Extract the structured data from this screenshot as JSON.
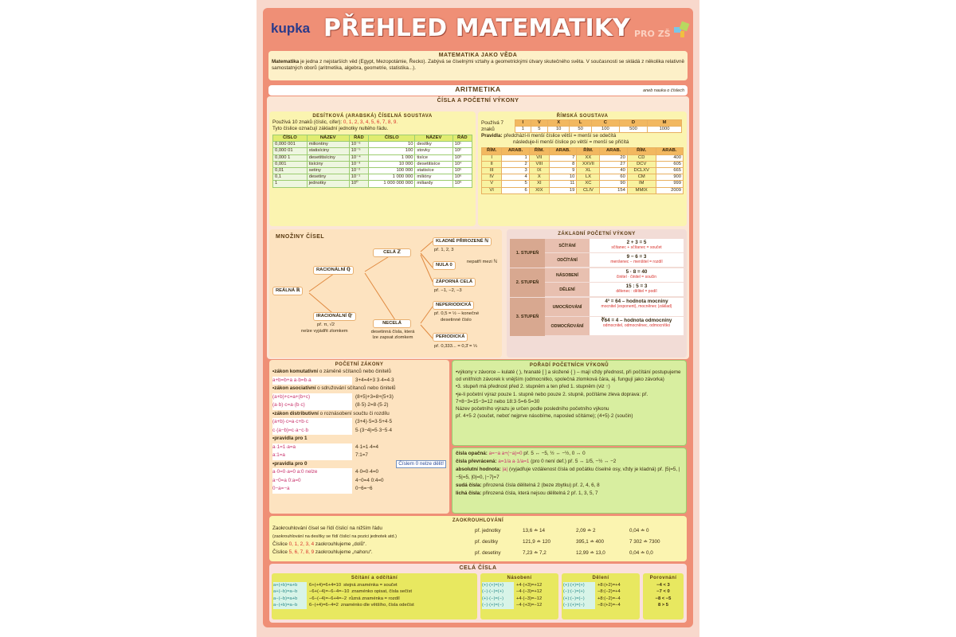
{
  "header": {
    "logo": "kupka",
    "title": "PŘEHLED MATEMATIKY",
    "subtitle": "PRO ZŠ",
    "icon": "puzzle-pieces-icon"
  },
  "intro": {
    "title": "MATEMATIKA JAKO VĚDA",
    "bold": "Matematika",
    "text": " je jedna z nejstarších věd (Egypt, Mezopotámie, Řecko). Zabývá se číselnými vztahy a geometrickými útvary skutečného světa. V současnosti se skládá z několika relativně samostatných oborů (aritmetika, algebra, geometrie, statistika...)."
  },
  "aritmetika": {
    "title": "ARITMETIKA",
    "note": "aneb nauka o číslech"
  },
  "cisla": {
    "title": "ČÍSLA A POČETNÍ VÝKONY"
  },
  "decimal": {
    "title": "DESÍTKOVÁ (ARABSKÁ) ČÍSELNÁ SOUSTAVA",
    "line1": "Používá 10 znaků (číslic, cifer): ",
    "digits": "0, 1, 2, 3, 4, 5, 6, 7, 8, 9.",
    "line2": "Tyto číslice označují základní jednotky nultého řádu.",
    "headers": [
      "ČÍSLO",
      "NÁZEV",
      "ŘÁD",
      "ČÍSLO",
      "NÁZEV",
      "ŘÁD"
    ],
    "rows": [
      [
        "0,000 001",
        "miliontiny",
        "10⁻⁶",
        "10",
        "desítky",
        "10¹"
      ],
      [
        "0,000 01",
        "statisíciny",
        "10⁻⁵",
        "100",
        "stovky",
        "10²"
      ],
      [
        "0,000 1",
        "desetitisíciny",
        "10⁻⁴",
        "1 000",
        "tisíce",
        "10³"
      ],
      [
        "0,001",
        "tisíciny",
        "10⁻³",
        "10 000",
        "desetitisíce",
        "10⁴"
      ],
      [
        "0,01",
        "setiny",
        "10⁻²",
        "100 000",
        "statisíce",
        "10⁵"
      ],
      [
        "0,1",
        "desetiny",
        "10⁻¹",
        "1 000 000",
        "milióny",
        "10⁶"
      ],
      [
        "1",
        "jednotky",
        "10⁰",
        "1 000 000 000",
        "miliardy",
        "10⁹"
      ]
    ]
  },
  "roman": {
    "title": "ŘÍMSKÁ SOUSTAVA",
    "uses": "Používá 7 znaků",
    "symbols": [
      "I",
      "V",
      "X",
      "L",
      "C",
      "D",
      "M"
    ],
    "values": [
      "1",
      "5",
      "10",
      "50",
      "100",
      "500",
      "1000"
    ],
    "rule_label": "Pravidla:",
    "rule1": "předchází-li menší číslice větší = menší se odečítá",
    "rule2": "následuje-li menší číslice po větší = menší se přičítá",
    "headers": [
      "ŘÍM.",
      "ARAB.",
      "ŘÍM.",
      "ARAB.",
      "ŘÍM.",
      "ARAB.",
      "ŘÍM.",
      "ARAB."
    ],
    "rows": [
      [
        "I",
        "1",
        "VII",
        "7",
        "XX",
        "20",
        "CD",
        "400"
      ],
      [
        "II",
        "2",
        "VIII",
        "8",
        "XXVII",
        "27",
        "DCV",
        "605"
      ],
      [
        "III",
        "3",
        "IX",
        "9",
        "XL",
        "40",
        "DCLXV",
        "665"
      ],
      [
        "IV",
        "4",
        "X",
        "10",
        "LX",
        "60",
        "CM",
        "900"
      ],
      [
        "V",
        "5",
        "XI",
        "11",
        "XC",
        "90",
        "IM",
        "999"
      ],
      [
        "VI",
        "6",
        "XIX",
        "19",
        "CLIV",
        "154",
        "MMIX",
        "2009"
      ]
    ]
  },
  "sets": {
    "title": "MNOŽINY ČÍSEL",
    "real": "REÁLNÁ ℝ",
    "rational": "RACIONÁLNÍ ℚ",
    "irrational": "IRACIONÁLNÍ ℚ'",
    "irr_ex": "př. π, √2",
    "irr_note": "nelze vyjádřit zlomkem",
    "integer": "CELÁ ℤ",
    "noninteger": "NECELÁ",
    "nonint_note": "desetinná čísla, která lze zapsat zlomkem",
    "natural": "KLADNÉ PŘIROZENÉ ℕ",
    "nat_ex": "př. 1, 2, 3",
    "zero": "NULA 0",
    "zero_note": "nepatří mezi ℕ",
    "negative": "ZÁPORNÁ CELÁ",
    "neg_ex": "př. −1, −2, −3",
    "nonperiodic": "NEPERIODICKÁ",
    "nonper_ex": "př. 0,5 = ½ – konečné",
    "nonper_note": "desetinné číslo",
    "periodic": "PERIODICKÁ",
    "per_ex": "př. 0,333... = 0,3̄ = ⅓"
  },
  "ops": {
    "title": "ZÁKLADNÍ POČETNÍ VÝKONY",
    "groups": [
      {
        "stage": "1. STUPEŇ",
        "rows": [
          {
            "name": "SČÍTÁNÍ",
            "ex": "2 + 3 = 5",
            "terms": "sčítanec + sčítanec = součet"
          },
          {
            "name": "ODČÍTÁNÍ",
            "ex": "9 − 6 = 3",
            "terms": "menšenec − menšitel = rozdíl"
          }
        ]
      },
      {
        "stage": "2. STUPEŇ",
        "rows": [
          {
            "name": "NÁSOBENÍ",
            "ex": "5 · 8 = 40",
            "terms": "činitel · činitel = součin"
          },
          {
            "name": "DĚLENÍ",
            "ex": "15 : 5 = 3",
            "terms": "dělenec : dělitel = podíl"
          }
        ]
      },
      {
        "stage": "3. STUPEŇ",
        "rows": [
          {
            "name": "UMOCŇOVÁNÍ",
            "ex": "4³ = 64 – hodnota mocniny",
            "terms": "mocnitel (exponent), mocněnec (základ)"
          },
          {
            "name": "ODMOCŇOVÁNÍ",
            "ex": "∛64 = 4 – hodnota odmocniny",
            "terms": "odmocnitel, odmocněnec, odmocnítko"
          }
        ]
      }
    ]
  },
  "laws": {
    "title": "POČETNÍ ZÁKONY",
    "lines": [
      {
        "b": "•zákon komutativní",
        "t": " o záměně sčítanců nebo činitelů"
      },
      {
        "f": "a+b=b+a   a·b=b·a",
        "t": "3+4=4+3   3·4=4·3"
      },
      {
        "b": "•zákon asociativní",
        "t": " o sdružování sčítanců nebo činitelů"
      },
      {
        "f": "(a+b)+c=a+(b+c)",
        "t": "(8+5)+3=8+(5+3)"
      },
      {
        "f": "(a·b)·c=a·(b·c)",
        "t": "(8·5)·2=8·(5·2)"
      },
      {
        "b": "•zákon distributivní",
        "t": " o roznásobení součtu či rozdílu"
      },
      {
        "f": "(a+b)·c=a·c+b·c",
        "t": "(3+4)·5=3·5+4·5"
      },
      {
        "f": "c·(a−b)=c·a−c·b",
        "t": "5·(3−4)=5·3−5·4"
      },
      {
        "b": "•pravidla pro 1",
        "t": ""
      },
      {
        "f": "a·1=1·a=a",
        "t": "4·1=1·4=4"
      },
      {
        "f": "a:1=a",
        "t": "7:1=7"
      },
      {
        "b": "•pravidla pro 0",
        "t": "",
        "n": "Číslem 0 nelze dělit!"
      },
      {
        "f": "a·0=0·a=0   a:0 nelze",
        "t": "4·0=0·4=0"
      },
      {
        "f": "a−0=a   0:a=0",
        "t": "4−0=4   0:4=0"
      },
      {
        "f": "0−a=−a",
        "t": "0−6=−6"
      }
    ]
  },
  "order": {
    "title": "POŘADÍ POČETNÍCH VÝKONŮ",
    "items": [
      "•výkony v závorce – kulaté ( ), hranaté [ ] a složené { } – mají vždy přednost, při počítání postupujeme od vnitřních závorek k vnějším (odmocnitko, společná zlomková čára, aj. fungují jako závorka)",
      "•3. stupeň má přednost před 2. stupněm a ten před 1. stupněm (viz ↑)",
      "•je-li početní výraz pouze 1. stupně nebo pouze 2. stupně, počítáme zleva doprava: př. 7+8−3=15−3=12 nebo 18:3·5=6·5=30",
      "Název početního výrazu je určen podle posledního početního výkonu",
      "př. 4+5·2 (součet, neboť nejprve násobíme, naposled sčítáme); (4+5)·2 (součin)"
    ]
  },
  "numbers": {
    "items": [
      {
        "b": "čísla opačná:",
        "f": " a=−a  a+(−a)=0",
        "t": "  př. 5 ↔ −5, ½ ↔ −½, 0 ↔ 0"
      },
      {
        "b": "čísla převrácená:",
        "f": " a=1/a  a·1/a=1",
        "t": " (pro 0 není def.) př. 5 ↔ 1/5, −½ ↔ −2"
      },
      {
        "b": "absolutní hodnota:",
        "f": " |a|",
        "t": " (vyjadřuje vzdálenost čísla od počátku číselné osy, vždy je kladná) př. |5|=5, |−5|=5, |0|=0, |−7|=7"
      },
      {
        "b": "sudá čísla:",
        "f": "",
        "t": " přirozená čísla dělitelná 2 (beze zbytku)  př. 2, 4, 6, 8"
      },
      {
        "b": "lichá čísla:",
        "f": "",
        "t": " přirozená čísla, která nejsou dělitelná 2  př. 1, 3, 5, 7"
      }
    ]
  },
  "rounding": {
    "title": "ZAOKROUHLOVÁNÍ",
    "line1": "Zaokrouhlování čísel se řídí číslicí na nižším řádu",
    "line2": "(zaokrouhlování na desítky se řídí číslicí na pozici jednotek atd.)",
    "line3a": "Číslice ",
    "down": "0, 1, 2, 3, 4",
    "line3b": " zaokrouhlujeme „dolů“.",
    "line4a": "Číslice ",
    "up": "5, 6, 7, 8, 9",
    "line4b": " zaokrouhlujeme „nahoru“.",
    "rows": [
      {
        "label": "př. jednotky",
        "ex": [
          "13,6 ≐ 14",
          "2,09 ≐ 2",
          "0,04 ≐ 0"
        ]
      },
      {
        "label": "př. desítky",
        "ex": [
          "121,9 ≐ 120",
          "395,1 ≐ 400",
          "7 302 ≐ 7300"
        ]
      },
      {
        "label": "př. desetiny",
        "ex": [
          "7,23 ≐ 7,2",
          "12,99 ≐ 13,0",
          "0,04 ≐ 0,0"
        ]
      }
    ]
  },
  "integers": {
    "title": "CELÁ ČÍSLA",
    "add": {
      "title": "Sčítání a odčítání",
      "rows": [
        [
          "a+(+b)=a+b",
          "6+(+4)=6+4=10",
          "stejná znaménka = součet"
        ],
        [
          "a+(−b)=a−b",
          "−6+(−4)=−6−4=−10",
          "znaménko opisat, čísla sečíst"
        ],
        [
          "a−(−b)=a+b",
          "−6−(−4)=−6+4=−2",
          "různá znaménka = rozdíl"
        ],
        [
          "a−(+b)=a−b",
          "6−(+4)=6−4=2",
          "znaménko dle většího, čísla odečíst"
        ]
      ]
    },
    "mul": {
      "title": "Násobení",
      "rows": [
        [
          "(+)·(+)=(+)",
          "+4·(+3)=+12"
        ],
        [
          "(−)·(−)=(+)",
          "−4·(−3)=+12"
        ],
        [
          "(+)·(−)=(−)",
          "+4·(−3)=−12"
        ],
        [
          "(−)·(+)=(−)",
          "−4·(+3)=−12"
        ]
      ]
    },
    "div": {
      "title": "Dělení",
      "rows": [
        [
          "(+):(+)=(+)",
          "+8:(+2)=+4"
        ],
        [
          "(−):(−)=(+)",
          "−8:(−2)=+4"
        ],
        [
          "(+):(−)=(−)",
          "+8:(−2)=−4"
        ],
        [
          "(−):(+)=(−)",
          "−8:(+2)=−4"
        ]
      ]
    },
    "cmp": {
      "title": "Porovnání",
      "rows": [
        "−4 < 3",
        "−7 < 0",
        "−8 < −5",
        "8 > 5"
      ]
    }
  },
  "colors": {
    "frame": "#ef8f76",
    "yellow": "#fbf4b0",
    "peach": "#fde3c0",
    "green": "#d8eea0",
    "accent": "#d8302a"
  }
}
